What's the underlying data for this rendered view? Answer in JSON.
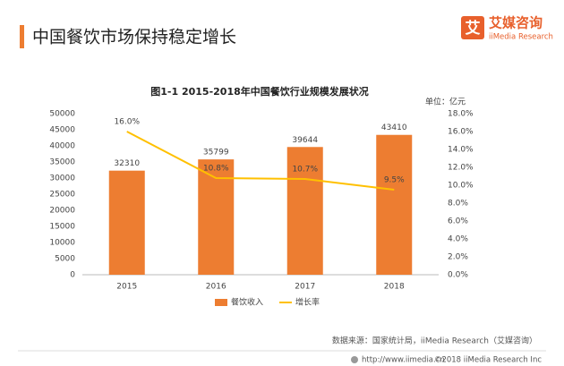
{
  "header": {
    "title": "中国餐饮市场保持稳定增长",
    "logo_icon": "艾",
    "logo_text": "艾媒咨询",
    "logo_subtext": "iiMedia Research"
  },
  "chart_data": {
    "type": "bar",
    "title": "图1-1 2015-2018年中国餐饮行业规模发展状况",
    "unit": "单位：亿元",
    "categories": [
      "2015",
      "2016",
      "2017",
      "2018"
    ],
    "series": [
      {
        "name": "餐饮收入",
        "color": "#ed7d31",
        "values": [
          32310,
          35799,
          39644,
          43410
        ]
      },
      {
        "name": "增长率",
        "type": "line",
        "axis": "y2",
        "color": "#ffc000",
        "values": [
          16.0,
          10.8,
          10.7,
          9.5
        ],
        "value_labels": [
          "16.0%",
          "10.8%",
          "10.7%",
          "9.5%"
        ]
      }
    ],
    "ylim": [
      0,
      50000
    ],
    "yticks": [
      0,
      5000,
      10000,
      15000,
      20000,
      25000,
      30000,
      35000,
      40000,
      45000,
      50000
    ],
    "y2lim": [
      0,
      18
    ],
    "y2ticks": [
      {
        "value": 0,
        "label": "0.0%"
      },
      {
        "value": 2,
        "label": "2.0%"
      },
      {
        "value": 4,
        "label": "4.0%"
      },
      {
        "value": 6,
        "label": "6.0%"
      },
      {
        "value": 8,
        "label": "8.0%"
      },
      {
        "value": 10,
        "label": "10.0%"
      },
      {
        "value": 12,
        "label": "12.0%"
      },
      {
        "value": 14,
        "label": "14.0%"
      },
      {
        "value": 16,
        "label": "16.0%"
      },
      {
        "value": 18,
        "label": "18.0%"
      }
    ],
    "grid": false,
    "legend": "bottom"
  },
  "footer": {
    "source": "数据来源：国家统计局，iiMedia Research（艾媒咨询）",
    "url": "http://www.iimedia.cn",
    "copyright": "©2018  iiMedia Research  Inc"
  }
}
